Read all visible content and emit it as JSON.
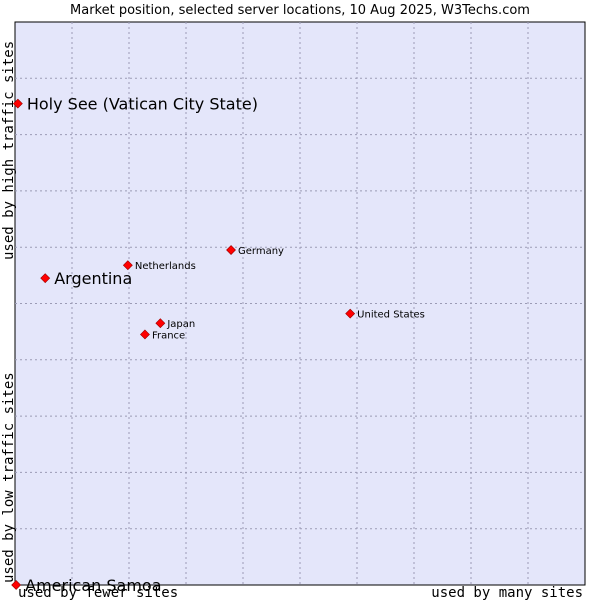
{
  "chart_data": {
    "type": "scatter",
    "title": "Market position, selected server locations, 10 Aug 2025, W3Techs.com",
    "xlabel_left": "used by fewer sites",
    "xlabel_right": "used by many sites",
    "ylabel_bottom": "used by low traffic sites",
    "ylabel_top": "used by high traffic sites",
    "xlim": [
      0,
      100
    ],
    "ylim": [
      0,
      100
    ],
    "grid": true,
    "colors": {
      "plot_background": "#e4e6fa",
      "grid": "#9b9bb5",
      "marker": "#ff0000",
      "marker_stroke": "#990000"
    },
    "points": [
      {
        "name": "Holy See (Vatican City State)",
        "x": 0.5,
        "y": 85.5,
        "emphasis": true
      },
      {
        "name": "Argentina",
        "x": 5.3,
        "y": 54.5,
        "emphasis": true
      },
      {
        "name": "American Samoa",
        "x": 0.2,
        "y": 0.0,
        "emphasis": true
      },
      {
        "name": "Netherlands",
        "x": 19.8,
        "y": 56.8,
        "emphasis": false
      },
      {
        "name": "Germany",
        "x": 37.9,
        "y": 59.5,
        "emphasis": false
      },
      {
        "name": "Japan",
        "x": 25.5,
        "y": 46.5,
        "emphasis": false
      },
      {
        "name": "France",
        "x": 22.8,
        "y": 44.5,
        "emphasis": false
      },
      {
        "name": "United States",
        "x": 58.8,
        "y": 48.2,
        "emphasis": false
      }
    ]
  }
}
